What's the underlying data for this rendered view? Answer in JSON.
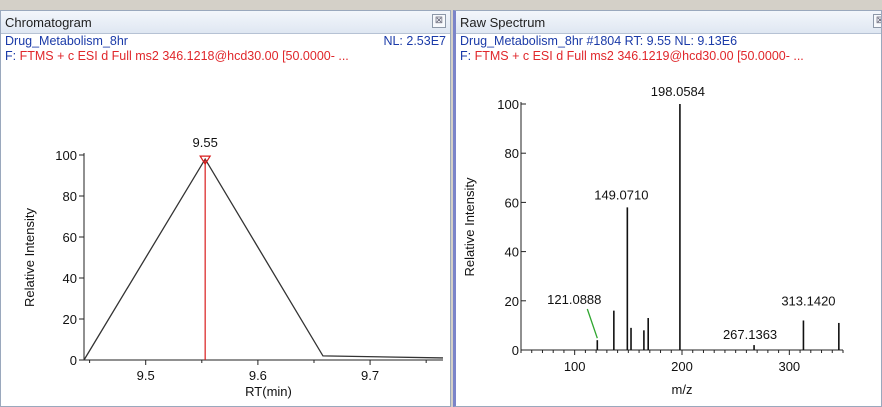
{
  "chromatogram": {
    "title": "Chromatogram",
    "close_glyph": "⊠",
    "sample": "Drug_Metabolism_8hr",
    "nl": "NL: 2.53E7",
    "filter_prefix": "F:",
    "filter": "FTMS + c ESI d Full ms2 346.1218@hcd30.00 [50.0000- ...",
    "ylabel": "Relative Intensity",
    "xlabel": "RT(min)",
    "peak_label": "9.55"
  },
  "spectrum": {
    "title": "Raw Spectrum",
    "close_glyph": "⊠",
    "header": "Drug_Metabolism_8hr #1804   RT: 9.55   NL: 9.13E6",
    "filter_prefix": "F:",
    "filter": "FTMS + c ESI d Full ms2 346.1219@hcd30.00 [50.0000- ...",
    "ylabel": "Relative Intensity",
    "xlabel": "m/z"
  },
  "chart_data": [
    {
      "type": "line",
      "title": "Chromatogram",
      "xlabel": "RT(min)",
      "ylabel": "Relative Intensity",
      "xlim": [
        9.445,
        9.765
      ],
      "ylim": [
        0,
        100
      ],
      "x": [
        9.445,
        9.553,
        9.658,
        9.765
      ],
      "y": [
        0,
        98,
        2,
        1
      ],
      "xticks": [
        "9.5",
        "9.6",
        "9.7"
      ],
      "yticks": [
        "0",
        "20",
        "40",
        "60",
        "80",
        "100"
      ],
      "peak_rt": 9.553,
      "annotations": [
        {
          "x": 9.553,
          "y": 98,
          "text": "9.55"
        }
      ]
    },
    {
      "type": "bar",
      "title": "Raw Spectrum",
      "xlabel": "m/z",
      "ylabel": "Relative Intensity",
      "xlim": [
        50,
        350
      ],
      "ylim": [
        0,
        100
      ],
      "xticks": [
        "100",
        "200",
        "300"
      ],
      "yticks": [
        "0",
        "20",
        "40",
        "60",
        "80",
        "100"
      ],
      "mz": [
        121.0888,
        136.5,
        149.071,
        152.5,
        164.5,
        168.5,
        198.0584,
        267.1363,
        313.142,
        346.1219
      ],
      "intensity": [
        4,
        16,
        58,
        9,
        8,
        13,
        100,
        2,
        12,
        11
      ],
      "annotations": [
        {
          "x": 198.0584,
          "y": 100,
          "text": "198.0584"
        },
        {
          "x": 149.071,
          "y": 58,
          "text": "149.0710"
        },
        {
          "x": 121.0888,
          "y": 4,
          "text": "121.0888"
        },
        {
          "x": 313.142,
          "y": 12,
          "text": "313.1420"
        },
        {
          "x": 267.1363,
          "y": 2,
          "text": "267.1363"
        }
      ]
    }
  ]
}
